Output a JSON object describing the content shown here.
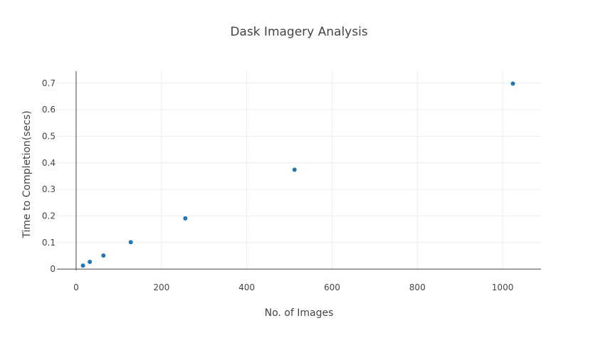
{
  "chart_data": {
    "type": "scatter",
    "title": "Dask Imagery Analysis",
    "xlabel": "No. of Images",
    "ylabel": "Time to Completion(secs)",
    "x": [
      16,
      32,
      64,
      128,
      256,
      512,
      1024
    ],
    "y": [
      0.013,
      0.027,
      0.051,
      0.101,
      0.191,
      0.374,
      0.698
    ],
    "xlim": [
      -45,
      1090
    ],
    "ylim": [
      -0.005,
      0.745
    ],
    "xticks": [
      0,
      200,
      400,
      600,
      800,
      1000
    ],
    "yticks": [
      0,
      0.1,
      0.2,
      0.3,
      0.4,
      0.5,
      0.6,
      0.7
    ],
    "xtick_labels": [
      "0",
      "200",
      "400",
      "600",
      "800",
      "1000"
    ],
    "ytick_labels": [
      "0",
      "0.1",
      "0.2",
      "0.3",
      "0.4",
      "0.5",
      "0.6",
      "0.7"
    ],
    "grid": true,
    "legend": "none",
    "colors": {
      "marker": "#1f77b4",
      "grid": "#eeeeee",
      "axis": "#444444",
      "text": "#444444"
    }
  }
}
